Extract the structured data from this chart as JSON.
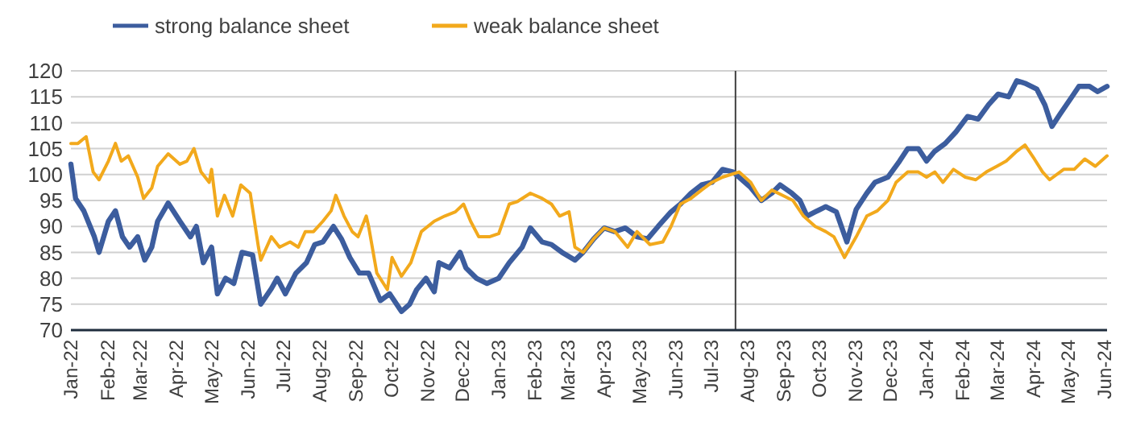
{
  "chart_data": {
    "type": "line",
    "legend": "top",
    "grid": "y",
    "line_style": "solid",
    "marker": "none",
    "xlim": [
      "2022-01-01",
      "2024-06-03"
    ],
    "xticks": [
      {
        "value": "2022-01-01",
        "label": "Jan-22"
      },
      {
        "value": "2022-02-01",
        "label": "Feb-22"
      },
      {
        "value": "2022-03-01",
        "label": "Mar-22"
      },
      {
        "value": "2022-04-01",
        "label": "Apr-22"
      },
      {
        "value": "2022-05-01",
        "label": "May-22"
      },
      {
        "value": "2022-06-01",
        "label": "Jun-22"
      },
      {
        "value": "2022-07-01",
        "label": "Jul-22"
      },
      {
        "value": "2022-08-01",
        "label": "Aug-22"
      },
      {
        "value": "2022-09-01",
        "label": "Sep-22"
      },
      {
        "value": "2022-10-01",
        "label": "Oct-22"
      },
      {
        "value": "2022-11-01",
        "label": "Nov-22"
      },
      {
        "value": "2022-12-01",
        "label": "Dec-22"
      },
      {
        "value": "2023-01-01",
        "label": "Jan-23"
      },
      {
        "value": "2023-02-01",
        "label": "Feb-23"
      },
      {
        "value": "2023-03-01",
        "label": "Mar-23"
      },
      {
        "value": "2023-04-01",
        "label": "Apr-23"
      },
      {
        "value": "2023-05-01",
        "label": "May-23"
      },
      {
        "value": "2023-06-01",
        "label": "Jun-23"
      },
      {
        "value": "2023-07-01",
        "label": "Jul-23"
      },
      {
        "value": "2023-08-01",
        "label": "Aug-23"
      },
      {
        "value": "2023-09-01",
        "label": "Sep-23"
      },
      {
        "value": "2023-10-01",
        "label": "Oct-23"
      },
      {
        "value": "2023-11-01",
        "label": "Nov-23"
      },
      {
        "value": "2023-12-01",
        "label": "Dec-23"
      },
      {
        "value": "2024-01-01",
        "label": "Jan-24"
      },
      {
        "value": "2024-02-01",
        "label": "Feb-24"
      },
      {
        "value": "2024-03-01",
        "label": "Mar-24"
      },
      {
        "value": "2024-04-01",
        "label": "Apr-24"
      },
      {
        "value": "2024-05-01",
        "label": "May-24"
      },
      {
        "value": "2024-06-01",
        "label": "Jun-24"
      }
    ],
    "ylim": [
      70,
      120
    ],
    "yticks": [
      70,
      75,
      80,
      85,
      90,
      95,
      100,
      105,
      110,
      115,
      120
    ],
    "ref_lines": [
      {
        "axis": "x",
        "value": "2023-07-22",
        "color": "#404040"
      }
    ],
    "series": [
      {
        "name": "strong balance sheet",
        "color": "#3c5d9e",
        "x": [
          "2022-01-01",
          "2022-01-05",
          "2022-01-12",
          "2022-01-21",
          "2022-01-25",
          "2022-02-02",
          "2022-02-08",
          "2022-02-14",
          "2022-02-20",
          "2022-02-27",
          "2022-03-05",
          "2022-03-11",
          "2022-03-16",
          "2022-03-25",
          "2022-04-04",
          "2022-04-13",
          "2022-04-18",
          "2022-04-24",
          "2022-05-01",
          "2022-05-06",
          "2022-05-13",
          "2022-05-20",
          "2022-05-27",
          "2022-06-05",
          "2022-06-12",
          "2022-06-21",
          "2022-06-26",
          "2022-07-03",
          "2022-07-12",
          "2022-07-21",
          "2022-07-28",
          "2022-08-04",
          "2022-08-13",
          "2022-08-20",
          "2022-08-27",
          "2022-09-04",
          "2022-09-12",
          "2022-09-22",
          "2022-09-30",
          "2022-10-10",
          "2022-10-17",
          "2022-10-23",
          "2022-10-31",
          "2022-11-07",
          "2022-11-11",
          "2022-11-20",
          "2022-11-29",
          "2022-12-04",
          "2022-12-13",
          "2022-12-22",
          "2023-01-01",
          "2023-01-10",
          "2023-01-21",
          "2023-01-28",
          "2023-02-07",
          "2023-02-15",
          "2023-02-24",
          "2023-03-07",
          "2023-03-14",
          "2023-03-23",
          "2023-04-01",
          "2023-04-10",
          "2023-04-19",
          "2023-04-29",
          "2023-05-08",
          "2023-05-17",
          "2023-05-28",
          "2023-06-05",
          "2023-06-14",
          "2023-06-23",
          "2023-07-02",
          "2023-07-11",
          "2023-07-20",
          "2023-08-04",
          "2023-08-13",
          "2023-08-22",
          "2023-08-29",
          "2023-09-08",
          "2023-09-15",
          "2023-09-21",
          "2023-09-28",
          "2023-10-07",
          "2023-10-16",
          "2023-10-25",
          "2023-11-02",
          "2023-11-11",
          "2023-11-18",
          "2023-11-29",
          "2023-12-09",
          "2023-12-16",
          "2023-12-25",
          "2024-01-01",
          "2024-01-08",
          "2024-01-17",
          "2024-01-26",
          "2024-02-05",
          "2024-02-14",
          "2024-02-23",
          "2024-03-02",
          "2024-03-11",
          "2024-03-18",
          "2024-03-25",
          "2024-04-04",
          "2024-04-11",
          "2024-04-17",
          "2024-04-24",
          "2024-05-04",
          "2024-05-10",
          "2024-05-19",
          "2024-05-26",
          "2024-06-03"
        ],
        "values": [
          102,
          95.4,
          93,
          88,
          85,
          91,
          93,
          88,
          86,
          88,
          83.5,
          86,
          91,
          94.5,
          91,
          88,
          90,
          83,
          86,
          77,
          80,
          79,
          85,
          84.5,
          75,
          78,
          80,
          77,
          81,
          83,
          86.5,
          87,
          90,
          87.5,
          84,
          81,
          81,
          75.7,
          77,
          73.6,
          75,
          77.8,
          80,
          77.4,
          83,
          82,
          85,
          82,
          80,
          79,
          80,
          83,
          86,
          89.7,
          87,
          86.5,
          85,
          83.5,
          85,
          87.6,
          89.7,
          89,
          89.7,
          88,
          87.6,
          90,
          92.8,
          94.3,
          96.4,
          98,
          98.5,
          101,
          100.5,
          97.5,
          95,
          96.4,
          98,
          96.4,
          95,
          92,
          92.8,
          93.8,
          92.8,
          87,
          93.3,
          96.4,
          98.5,
          99.5,
          102.6,
          105,
          105,
          102.6,
          104.5,
          106,
          108.2,
          111.2,
          110.7,
          113.5,
          115.5,
          115,
          118.1,
          117.6,
          116.5,
          113.4,
          109.3,
          111.7,
          115,
          117,
          117,
          116,
          117
        ]
      },
      {
        "name": "weak balance sheet",
        "color": "#f2a91c",
        "x": [
          "2022-01-01",
          "2022-01-07",
          "2022-01-14",
          "2022-01-20",
          "2022-01-25",
          "2022-02-02",
          "2022-02-08",
          "2022-02-13",
          "2022-02-19",
          "2022-02-27",
          "2022-03-04",
          "2022-03-11",
          "2022-03-16",
          "2022-03-25",
          "2022-04-04",
          "2022-04-10",
          "2022-04-16",
          "2022-04-22",
          "2022-04-29",
          "2022-05-01",
          "2022-05-06",
          "2022-05-12",
          "2022-05-19",
          "2022-05-26",
          "2022-06-03",
          "2022-06-10",
          "2022-06-12",
          "2022-06-21",
          "2022-06-28",
          "2022-07-07",
          "2022-07-14",
          "2022-07-20",
          "2022-07-27",
          "2022-08-04",
          "2022-08-11",
          "2022-08-15",
          "2022-08-22",
          "2022-08-29",
          "2022-09-03",
          "2022-09-10",
          "2022-09-12",
          "2022-09-19",
          "2022-09-28",
          "2022-10-02",
          "2022-10-10",
          "2022-10-18",
          "2022-10-27",
          "2022-11-07",
          "2022-11-16",
          "2022-11-25",
          "2022-12-02",
          "2022-12-08",
          "2022-12-15",
          "2022-12-24",
          "2023-01-01",
          "2023-01-10",
          "2023-01-17",
          "2023-01-28",
          "2023-02-07",
          "2023-02-15",
          "2023-02-22",
          "2023-03-02",
          "2023-03-07",
          "2023-03-14",
          "2023-03-23",
          "2023-04-01",
          "2023-04-10",
          "2023-04-21",
          "2023-04-29",
          "2023-05-10",
          "2023-05-21",
          "2023-05-28",
          "2023-06-05",
          "2023-06-14",
          "2023-06-23",
          "2023-07-02",
          "2023-07-11",
          "2023-07-25",
          "2023-08-04",
          "2023-08-13",
          "2023-08-22",
          "2023-08-31",
          "2023-09-09",
          "2023-09-18",
          "2023-09-28",
          "2023-10-07",
          "2023-10-14",
          "2023-10-23",
          "2023-11-02",
          "2023-11-11",
          "2023-11-20",
          "2023-11-29",
          "2023-12-06",
          "2023-12-16",
          "2023-12-25",
          "2024-01-01",
          "2024-01-08",
          "2024-01-15",
          "2024-01-24",
          "2024-02-03",
          "2024-02-12",
          "2024-02-21",
          "2024-03-01",
          "2024-03-09",
          "2024-03-18",
          "2024-03-25",
          "2024-04-02",
          "2024-04-09",
          "2024-04-15",
          "2024-04-27",
          "2024-05-06",
          "2024-05-15",
          "2024-05-24",
          "2024-06-03"
        ],
        "values": [
          106,
          106,
          107.3,
          100.5,
          99,
          102.6,
          106,
          102.6,
          103.6,
          99.5,
          95.4,
          97.4,
          101.6,
          104,
          102,
          102.6,
          105,
          100.5,
          98.5,
          101,
          92,
          96,
          92,
          98,
          96.4,
          86,
          83.5,
          88,
          86,
          87,
          86,
          89,
          89,
          91,
          93,
          96,
          92,
          89,
          88,
          92,
          90,
          81,
          77.8,
          84,
          80.4,
          83,
          89,
          91,
          92,
          92.8,
          94.3,
          91,
          88,
          88,
          88.6,
          94.3,
          94.8,
          96.4,
          95.4,
          94.3,
          92,
          92.8,
          86,
          85,
          87.6,
          89.7,
          89,
          86,
          89,
          86.5,
          87,
          90,
          94.3,
          95.4,
          97,
          98.5,
          99.5,
          100.5,
          98.5,
          95,
          97,
          96,
          95,
          92,
          90,
          89,
          88,
          84,
          88,
          92,
          93,
          95,
          98.5,
          100.5,
          100.5,
          99.5,
          100.5,
          98.5,
          101,
          99.5,
          99,
          100.5,
          101.6,
          102.6,
          104.5,
          105.7,
          103,
          100.5,
          99,
          101,
          101,
          103,
          101.6,
          103.6
        ]
      }
    ]
  }
}
